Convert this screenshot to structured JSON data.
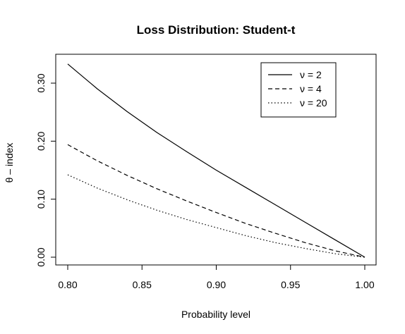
{
  "chart_data": {
    "type": "line",
    "title": "Loss Distribution: Student-t",
    "xlabel": "Probability level",
    "ylabel": "θ – index",
    "xlim": [
      0.8,
      1.0
    ],
    "ylim": [
      0.0,
      0.33
    ],
    "x_ticks": [
      0.8,
      0.85,
      0.9,
      0.95,
      1.0
    ],
    "x_tick_labels": [
      "0.80",
      "0.85",
      "0.90",
      "0.95",
      "1.00"
    ],
    "y_ticks": [
      0.0,
      0.1,
      0.2,
      0.3
    ],
    "y_tick_labels": [
      "0.00",
      "0.10",
      "0.20",
      "0.30"
    ],
    "grid": false,
    "legend_position": "top-right",
    "x": [
      0.8,
      0.82,
      0.84,
      0.86,
      0.88,
      0.9,
      0.92,
      0.94,
      0.96,
      0.98,
      1.0
    ],
    "series": [
      {
        "name": "ν = 2",
        "line_style": "solid",
        "values": [
          0.333,
          0.29,
          0.251,
          0.215,
          0.182,
          0.15,
          0.12,
          0.09,
          0.06,
          0.03,
          0.0
        ]
      },
      {
        "name": "ν = 4",
        "line_style": "dashed",
        "values": [
          0.194,
          0.166,
          0.141,
          0.118,
          0.097,
          0.077,
          0.058,
          0.041,
          0.025,
          0.011,
          0.0
        ]
      },
      {
        "name": "ν = 20",
        "line_style": "dotted",
        "values": [
          0.142,
          0.119,
          0.099,
          0.081,
          0.065,
          0.051,
          0.037,
          0.025,
          0.015,
          0.006,
          0.0
        ]
      }
    ],
    "colors": {
      "line": "#000000",
      "axis": "#000000",
      "background": "#ffffff"
    }
  }
}
